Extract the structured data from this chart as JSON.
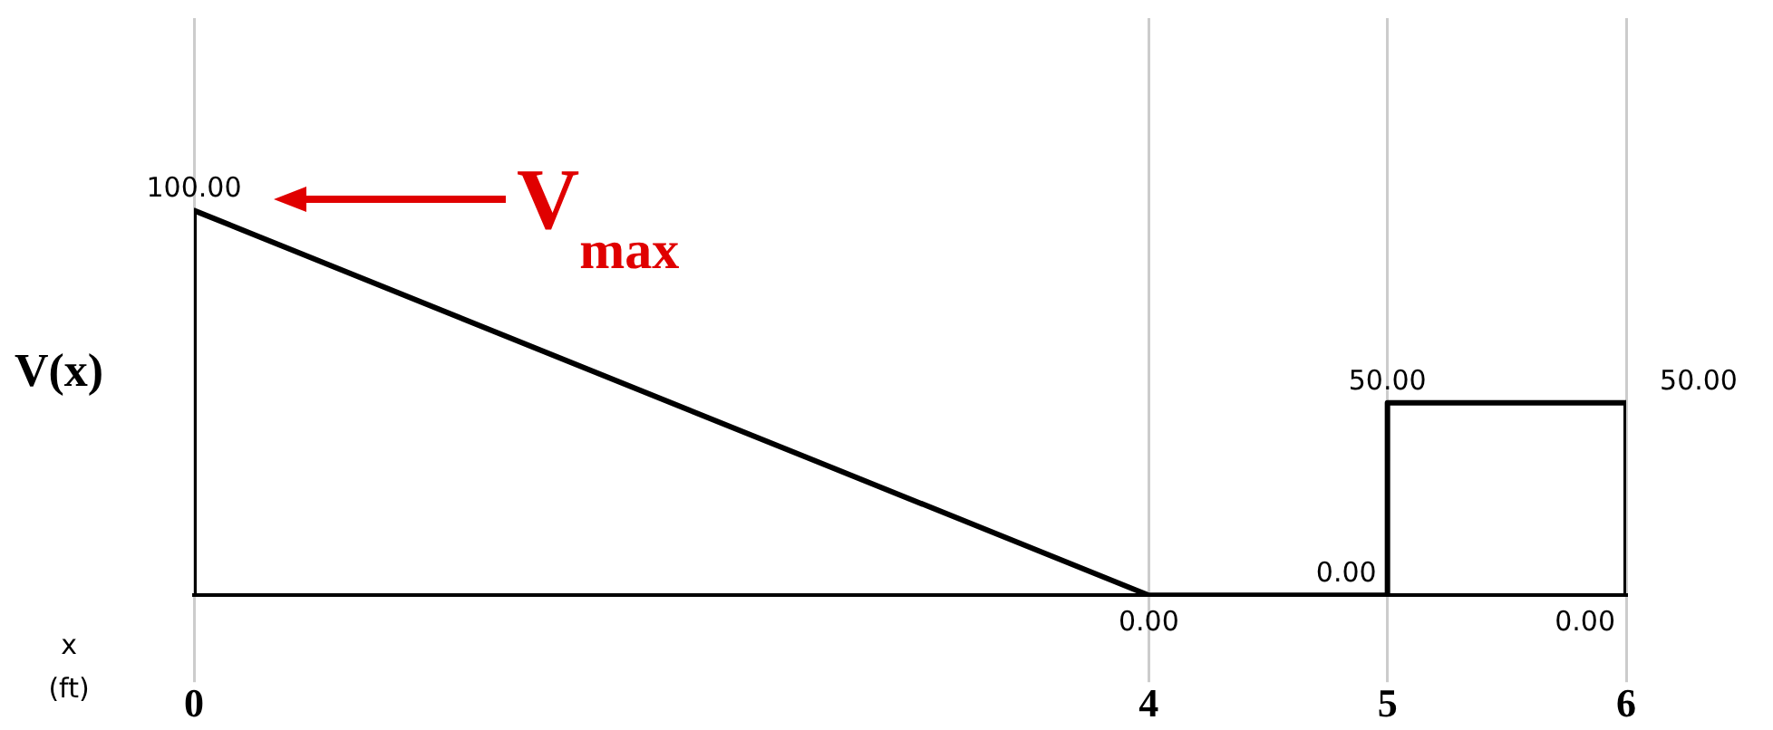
{
  "chart_data": {
    "type": "line",
    "xlabel": "x (ft)",
    "ylabel": "V(x)",
    "x": [
      0,
      0,
      4,
      5,
      5,
      6,
      6
    ],
    "values": [
      0,
      100,
      0,
      0,
      50,
      50,
      0
    ],
    "value_labels": [
      null,
      "100.00",
      "0.00",
      "0.00",
      "50.00",
      "50.00",
      "0.00"
    ],
    "color": "#000000",
    "xlim": [
      0,
      6
    ],
    "xticks": [
      0,
      4,
      5,
      6
    ],
    "ylim": [
      0,
      150
    ],
    "tick_labels": "x",
    "grid": "x",
    "marker": "none",
    "line_style": "solid",
    "legend": false,
    "annotations": [
      "V$_{max}$"
    ]
  }
}
